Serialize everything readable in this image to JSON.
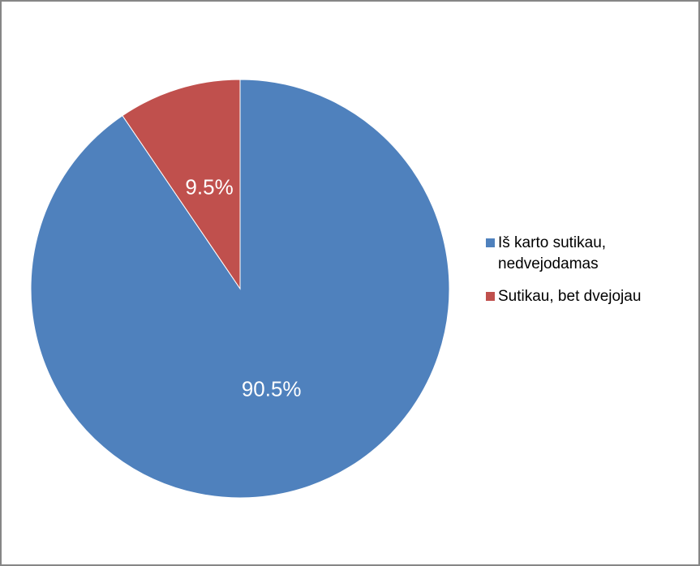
{
  "chart_data": {
    "type": "pie",
    "title": "",
    "legend_position": "right",
    "slices": [
      {
        "label": "Iš karto sutikau,\nnedvejodamas",
        "value": 90.5,
        "display": "90.5%",
        "color": "#4f81bd"
      },
      {
        "label": "Sutikau, bet dvejojau",
        "value": 9.5,
        "display": "9.5%",
        "color": "#c0504d"
      }
    ]
  }
}
